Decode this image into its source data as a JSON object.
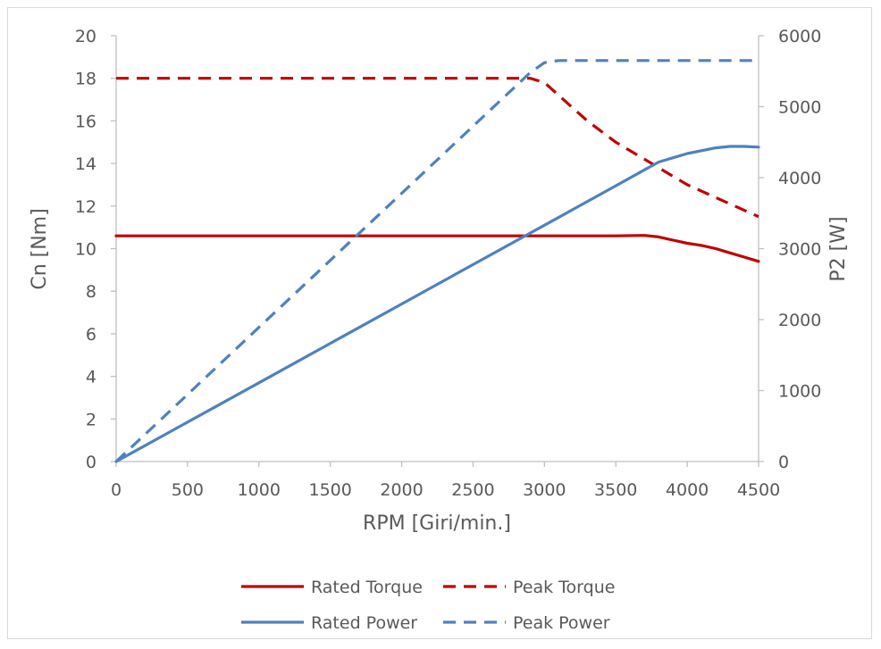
{
  "chart_data": {
    "type": "line",
    "xlabel": "RPM [Giri/min.]",
    "ylabel_left": "Cn [Nm]",
    "ylabel_right": "P2 [W]",
    "xlim": [
      0,
      4500
    ],
    "ylim_left": [
      0,
      20
    ],
    "ylim_right": [
      0,
      6000
    ],
    "x_ticks": [
      "0",
      "500",
      "1000",
      "1500",
      "2000",
      "2500",
      "3000",
      "3500",
      "4000",
      "4500"
    ],
    "y_left_ticks": [
      "0",
      "2",
      "4",
      "6",
      "8",
      "10",
      "12",
      "14",
      "16",
      "18",
      "20"
    ],
    "y_right_ticks": [
      "0",
      "1000",
      "2000",
      "3000",
      "4000",
      "5000",
      "6000"
    ],
    "grid": false,
    "legend_position": "bottom",
    "series": [
      {
        "name": "Rated Torque",
        "axis": "left",
        "color": "#c00000",
        "dash": "solid",
        "x": [
          0,
          500,
          1000,
          1500,
          2000,
          2500,
          3000,
          3500,
          3700,
          3800,
          3900,
          4000,
          4100,
          4200,
          4300,
          4400,
          4500
        ],
        "y": [
          10.6,
          10.6,
          10.6,
          10.6,
          10.6,
          10.6,
          10.6,
          10.6,
          10.62,
          10.55,
          10.4,
          10.25,
          10.15,
          10.0,
          9.8,
          9.6,
          9.4
        ]
      },
      {
        "name": "Peak Torque",
        "axis": "left",
        "color": "#c00000",
        "dash": "dashed",
        "x": [
          0,
          500,
          1000,
          1500,
          2000,
          2500,
          2900,
          3000,
          3100,
          3200,
          3300,
          3400,
          3500,
          3600,
          3700,
          3800,
          3900,
          4000,
          4100,
          4200,
          4300,
          4400,
          4500
        ],
        "y": [
          18.0,
          18.0,
          18.0,
          18.0,
          18.0,
          18.0,
          18.0,
          17.8,
          17.2,
          16.6,
          16.0,
          15.5,
          15.0,
          14.6,
          14.2,
          13.8,
          13.4,
          13.0,
          12.7,
          12.4,
          12.1,
          11.8,
          11.5
        ]
      },
      {
        "name": "Rated Power",
        "axis": "right",
        "color": "#4f81bd",
        "dash": "solid",
        "x": [
          0,
          500,
          1000,
          1500,
          2000,
          2500,
          3000,
          3500,
          3700,
          3800,
          4000,
          4200,
          4300,
          4400,
          4500
        ],
        "y": [
          0,
          555,
          1110,
          1665,
          2220,
          2775,
          3330,
          3885,
          4110,
          4220,
          4340,
          4420,
          4440,
          4440,
          4430
        ]
      },
      {
        "name": "Peak Power",
        "axis": "right",
        "color": "#4f81bd",
        "dash": "dashed",
        "x": [
          0,
          500,
          1000,
          1500,
          2000,
          2500,
          2900,
          3000,
          3100,
          3500,
          4000,
          4500
        ],
        "y": [
          0,
          945,
          1890,
          2835,
          3780,
          4725,
          5480,
          5620,
          5650,
          5650,
          5650,
          5650
        ]
      }
    ]
  }
}
